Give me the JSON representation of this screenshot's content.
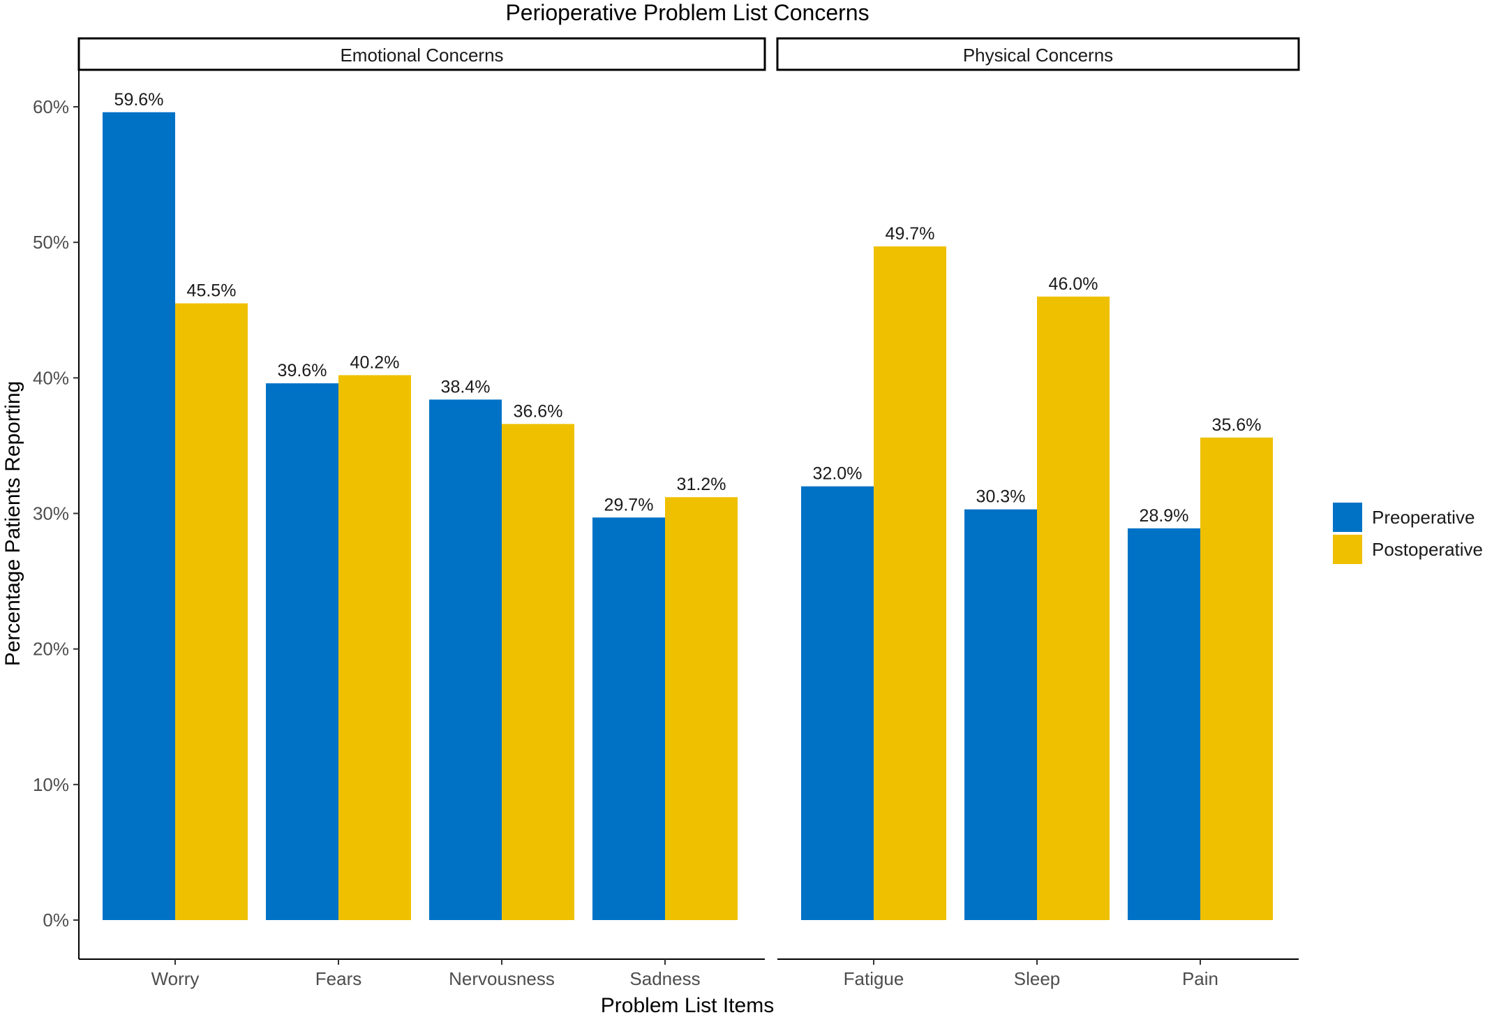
{
  "chart_data": {
    "type": "bar",
    "title": "Perioperative Problem List Concerns",
    "xlabel": "Problem List Items",
    "ylabel": "Percentage Patients Reporting",
    "ylim": [
      0,
      60
    ],
    "yticks": [
      0,
      10,
      20,
      30,
      40,
      50,
      60
    ],
    "ytick_labels": [
      "0%",
      "10%",
      "20%",
      "30%",
      "40%",
      "50%",
      "60%"
    ],
    "grid": false,
    "legend_position": "right",
    "series": [
      {
        "name": "Preoperative",
        "color": "#0072C6"
      },
      {
        "name": "Postoperative",
        "color": "#EFC000"
      }
    ],
    "panels": [
      {
        "label": "Emotional Concerns",
        "categories": [
          "Worry",
          "Fears",
          "Nervousness",
          "Sadness"
        ],
        "values": [
          [
            59.6,
            45.5
          ],
          [
            39.6,
            40.2
          ],
          [
            38.4,
            36.6
          ],
          [
            29.7,
            31.2
          ]
        ],
        "value_labels": [
          [
            "59.6%",
            "45.5%"
          ],
          [
            "39.6%",
            "40.2%"
          ],
          [
            "38.4%",
            "36.6%"
          ],
          [
            "29.7%",
            "31.2%"
          ]
        ]
      },
      {
        "label": "Physical Concerns",
        "categories": [
          "Fatigue",
          "Sleep",
          "Pain"
        ],
        "values": [
          [
            32.0,
            49.7
          ],
          [
            30.3,
            46.0
          ],
          [
            28.9,
            35.6
          ]
        ],
        "value_labels": [
          [
            "32.0%",
            "49.7%"
          ],
          [
            "30.3%",
            "46.0%"
          ],
          [
            "28.9%",
            "35.6%"
          ]
        ]
      }
    ]
  }
}
